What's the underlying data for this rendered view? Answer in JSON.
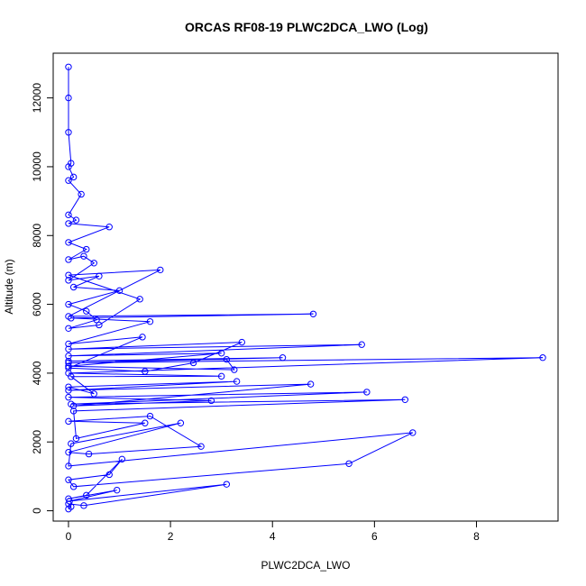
{
  "chart_data": {
    "type": "line",
    "title": "ORCAS RF08-19 PLWC2DCA_LWO (Log)",
    "xlabel": "PLWC2DCA_LWO",
    "ylabel": "Altitude (m)",
    "xlim": [
      -0.3,
      9.6
    ],
    "ylim": [
      -300,
      13300
    ],
    "xticks": [
      0,
      2,
      4,
      6,
      8
    ],
    "yticks": [
      0,
      2000,
      4000,
      6000,
      8000,
      10000,
      12000
    ],
    "grid": false,
    "series_color": "#0000ff",
    "marker": "open-circle",
    "series": [
      {
        "values": [
          [
            0.0,
            50
          ],
          [
            0.05,
            120
          ],
          [
            0.0,
            200
          ],
          [
            0.3,
            150
          ],
          [
            3.1,
            770
          ],
          [
            0.02,
            280
          ],
          [
            0.95,
            600
          ],
          [
            0.0,
            350
          ],
          [
            0.35,
            450
          ],
          [
            1.05,
            1500
          ],
          [
            0.8,
            1050
          ],
          [
            0.0,
            900
          ],
          [
            0.1,
            700
          ],
          [
            5.5,
            1370
          ],
          [
            6.75,
            2270
          ],
          [
            0.0,
            1300
          ],
          [
            0.05,
            1950
          ],
          [
            2.2,
            2550
          ],
          [
            0.0,
            1700
          ],
          [
            0.4,
            1650
          ],
          [
            2.6,
            1870
          ],
          [
            1.6,
            2750
          ],
          [
            0.0,
            2600
          ],
          [
            1.5,
            2550
          ],
          [
            0.15,
            2100
          ],
          [
            0.1,
            2900
          ],
          [
            6.6,
            3230
          ],
          [
            0.05,
            3100
          ],
          [
            5.85,
            3450
          ],
          [
            0.0,
            3300
          ],
          [
            2.8,
            3200
          ],
          [
            0.1,
            3050
          ],
          [
            4.75,
            3680
          ],
          [
            0.0,
            3500
          ],
          [
            3.3,
            3760
          ],
          [
            0.0,
            3600
          ],
          [
            0.5,
            3400
          ],
          [
            0.05,
            3900
          ],
          [
            3.0,
            3910
          ],
          [
            0.0,
            4000
          ],
          [
            9.3,
            4450
          ],
          [
            0.0,
            4300
          ],
          [
            4.2,
            4450
          ],
          [
            0.0,
            4350
          ],
          [
            3.1,
            4400
          ],
          [
            3.25,
            4100
          ],
          [
            0.0,
            4200
          ],
          [
            3.0,
            4580
          ],
          [
            0.0,
            4500
          ],
          [
            5.75,
            4830
          ],
          [
            0.0,
            4700
          ],
          [
            3.4,
            4900
          ],
          [
            2.45,
            4300
          ],
          [
            1.5,
            4050
          ],
          [
            0.0,
            4150
          ],
          [
            1.45,
            5050
          ],
          [
            0.0,
            4850
          ],
          [
            1.6,
            5500
          ],
          [
            0.05,
            5600
          ],
          [
            4.8,
            5720
          ],
          [
            0.0,
            5650
          ],
          [
            1.8,
            7000
          ],
          [
            0.0,
            6850
          ],
          [
            1.4,
            6150
          ],
          [
            0.6,
            5400
          ],
          [
            0.0,
            5300
          ],
          [
            0.55,
            5550
          ],
          [
            0.35,
            5800
          ],
          [
            0.0,
            6000
          ],
          [
            1.0,
            6400
          ],
          [
            0.1,
            6500
          ],
          [
            0.6,
            6820
          ],
          [
            0.0,
            6700
          ],
          [
            0.5,
            7200
          ],
          [
            0.3,
            7400
          ],
          [
            0.0,
            7300
          ],
          [
            0.35,
            7600
          ],
          [
            0.0,
            7800
          ],
          [
            0.8,
            8250
          ],
          [
            0.0,
            8350
          ],
          [
            0.15,
            8450
          ],
          [
            0.0,
            8600
          ],
          [
            0.25,
            9200
          ],
          [
            0.0,
            9600
          ],
          [
            0.1,
            9700
          ],
          [
            0.0,
            10000
          ],
          [
            0.05,
            10100
          ],
          [
            0.0,
            11000
          ],
          [
            0.0,
            12000
          ],
          [
            0.0,
            12900
          ]
        ]
      }
    ]
  }
}
